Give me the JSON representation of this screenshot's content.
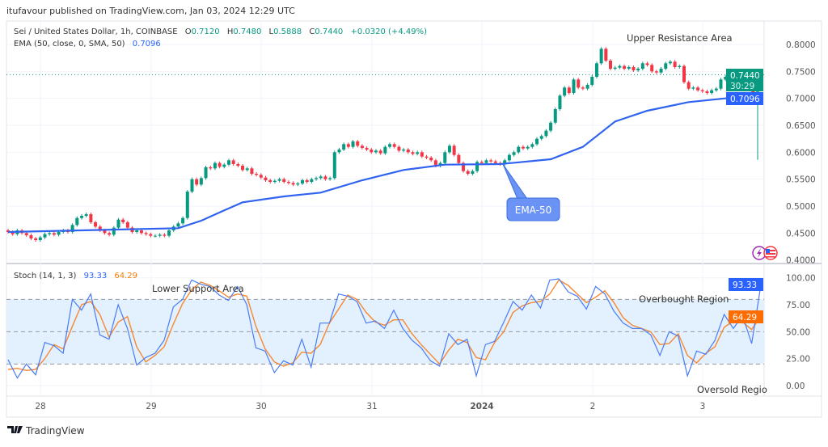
{
  "header": {
    "published": "itufavour published on TradingView.com, Jan 03, 2024 12:29 UTC"
  },
  "legend": {
    "symbol": "Sei / United States Dollar, 1h, COINBASE",
    "o_label": "O",
    "o": "0.7120",
    "h_label": "H",
    "h": "0.7480",
    "l_label": "L",
    "l": "0.5888",
    "c_label": "C",
    "c": "0.7440",
    "change": "+0.0320 (+4.49%)",
    "ema_label": "EMA (50, close, 0, SMA, 50)",
    "ema_value": "0.7096",
    "stoch_label": "Stoch (14, 1, 3)",
    "stoch_k": "93.33",
    "stoch_d": "64.29"
  },
  "annotations": {
    "upper": "Upper Resistance Area",
    "lower": "Lower Support Area",
    "overbought": "Overbought Region",
    "oversold": "Oversold Regio",
    "ema_callout": "EMA-50"
  },
  "price_labels": {
    "last": "0.7440",
    "countdown": "30:29",
    "ema": "0.7096"
  },
  "stoch_labels": {
    "k": "93.33",
    "d": "64.29"
  },
  "footer": {
    "brand": "TradingView"
  },
  "colors": {
    "up": "#089981",
    "down": "#f23645",
    "ema": "#2f63f0",
    "stoch_k": "#4a7cf7",
    "stoch_d": "#f7882f",
    "band": "#e3f0fd"
  },
  "icons": [
    "lightning-icon",
    "us-flag-icon"
  ],
  "chart_data": [
    {
      "type": "candlestick",
      "title": "Sei / United States Dollar, 1h, COINBASE",
      "interval": "1h",
      "first_open": 0.455,
      "closes": [
        0.452,
        0.448,
        0.455,
        0.45,
        0.446,
        0.44,
        0.437,
        0.442,
        0.448,
        0.45,
        0.447,
        0.452,
        0.455,
        0.452,
        0.465,
        0.478,
        0.482,
        0.485,
        0.47,
        0.462,
        0.455,
        0.45,
        0.447,
        0.46,
        0.475,
        0.47,
        0.46,
        0.452,
        0.455,
        0.45,
        0.448,
        0.445,
        0.445,
        0.447,
        0.445,
        0.455,
        0.462,
        0.468,
        0.478,
        0.527,
        0.55,
        0.54,
        0.552,
        0.572,
        0.57,
        0.58,
        0.573,
        0.577,
        0.585,
        0.578,
        0.575,
        0.567,
        0.57,
        0.56,
        0.558,
        0.553,
        0.548,
        0.545,
        0.547,
        0.55,
        0.545,
        0.543,
        0.54,
        0.542,
        0.548,
        0.545,
        0.55,
        0.552,
        0.555,
        0.55,
        0.552,
        0.6,
        0.605,
        0.615,
        0.61,
        0.62,
        0.612,
        0.608,
        0.605,
        0.6,
        0.603,
        0.598,
        0.61,
        0.615,
        0.61,
        0.603,
        0.605,
        0.6,
        0.597,
        0.6,
        0.592,
        0.59,
        0.585,
        0.575,
        0.58,
        0.6,
        0.612,
        0.595,
        0.58,
        0.565,
        0.56,
        0.565,
        0.582,
        0.58,
        0.585,
        0.583,
        0.58,
        0.578,
        0.585,
        0.595,
        0.6,
        0.61,
        0.607,
        0.61,
        0.615,
        0.625,
        0.63,
        0.64,
        0.655,
        0.68,
        0.705,
        0.72,
        0.71,
        0.735,
        0.72,
        0.718,
        0.725,
        0.74,
        0.765,
        0.792,
        0.77,
        0.755,
        0.757,
        0.76,
        0.755,
        0.758,
        0.752,
        0.755,
        0.765,
        0.762,
        0.75,
        0.748,
        0.755,
        0.765,
        0.768,
        0.758,
        0.76,
        0.73,
        0.718,
        0.72,
        0.715,
        0.713,
        0.71,
        0.715,
        0.718,
        0.735,
        0.74,
        0.728,
        0.735,
        0.73,
        0.733,
        0.73,
        0.71,
        0.744
      ],
      "last_candle": {
        "open": 0.712,
        "high": 0.748,
        "low": 0.5888,
        "close": 0.744
      },
      "ema_50": [
        [
          0,
          0.452
        ],
        [
          37,
          0.459
        ],
        [
          42,
          0.473
        ],
        [
          47,
          0.492
        ],
        [
          51,
          0.507
        ],
        [
          60,
          0.518
        ],
        [
          68,
          0.525
        ],
        [
          77,
          0.548
        ],
        [
          86,
          0.567
        ],
        [
          95,
          0.577
        ],
        [
          107,
          0.578
        ],
        [
          118,
          0.587
        ],
        [
          125,
          0.61
        ],
        [
          132,
          0.657
        ],
        [
          139,
          0.677
        ],
        [
          148,
          0.693
        ],
        [
          156,
          0.7
        ],
        [
          163,
          0.7096
        ]
      ],
      "y_axis": {
        "ticks": [
          "0.8000",
          "0.7500",
          "0.7000",
          "0.6500",
          "0.6000",
          "0.5500",
          "0.5000",
          "0.4500",
          "0.4000"
        ],
        "range": [
          0.4,
          0.8
        ]
      },
      "x_axis": {
        "ticks": [
          "28",
          "29",
          "30",
          "31",
          "2024",
          "2",
          "3"
        ]
      },
      "grid": true
    },
    {
      "type": "line",
      "title": "Stoch (14, 1, 3)",
      "series": [
        {
          "name": "%K",
          "values": [
            24,
            7,
            20,
            10,
            40,
            37,
            30,
            80,
            70,
            85,
            47,
            43,
            75,
            53,
            19,
            26,
            30,
            42,
            73,
            80,
            98,
            94,
            92,
            84,
            79,
            92,
            75,
            35,
            32,
            12,
            23,
            19,
            43,
            17,
            58,
            58,
            85,
            83,
            78,
            58,
            60,
            53,
            70,
            53,
            42,
            35,
            23,
            18,
            48,
            38,
            43,
            9,
            38,
            41,
            59,
            78,
            70,
            84,
            72,
            98,
            99,
            87,
            83,
            71,
            92,
            85,
            69,
            58,
            53,
            53,
            47,
            28,
            50,
            46,
            9,
            32,
            29,
            42,
            66,
            53,
            65,
            39,
            93.33
          ]
        },
        {
          "name": "%D",
          "values": [
            15,
            16,
            14,
            15,
            25,
            38,
            34,
            55,
            75,
            78,
            66,
            45,
            59,
            64,
            36,
            22,
            28,
            36,
            57,
            76,
            89,
            96,
            93,
            88,
            82,
            85,
            83,
            55,
            34,
            22,
            18,
            21,
            31,
            30,
            38,
            58,
            71,
            84,
            80,
            68,
            59,
            56,
            61,
            61,
            48,
            38,
            29,
            20,
            33,
            43,
            40,
            26,
            24,
            40,
            50,
            68,
            74,
            77,
            78,
            85,
            98,
            93,
            85,
            77,
            82,
            88,
            77,
            63,
            56,
            53,
            50,
            38,
            39,
            48,
            28,
            21,
            30,
            36,
            54,
            60,
            59,
            52,
            64.29
          ]
        }
      ],
      "y_axis": {
        "ticks": [
          "100.00",
          "75.00",
          "50.00",
          "25.00",
          "0.00"
        ],
        "range": [
          0,
          100
        ]
      },
      "bands": {
        "upper": 80,
        "middle": 50,
        "lower": 20
      }
    }
  ]
}
